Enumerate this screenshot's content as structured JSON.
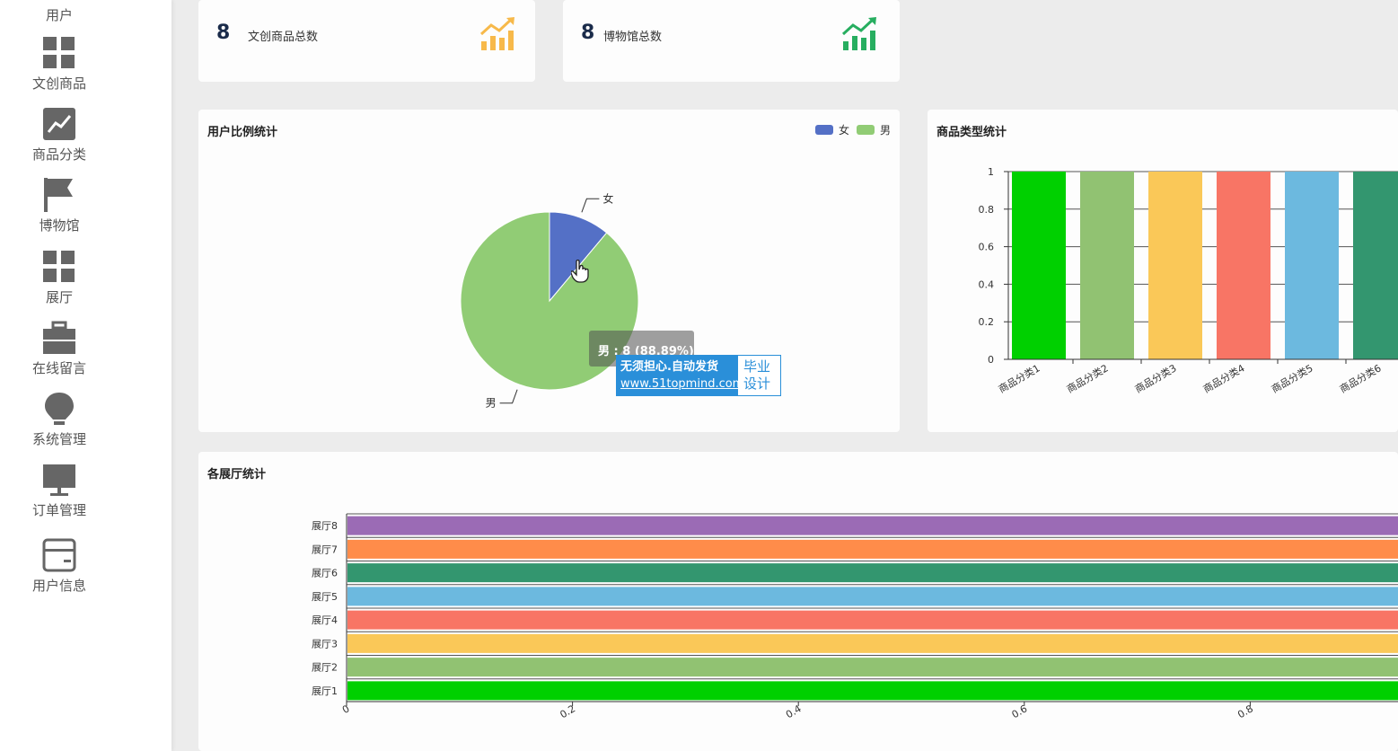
{
  "sidebar": {
    "items": [
      {
        "label": "用户",
        "icon": "user-icon"
      },
      {
        "label": "文创商品",
        "icon": "grid-icon"
      },
      {
        "label": "商品分类",
        "icon": "chart-icon"
      },
      {
        "label": "博物馆",
        "icon": "flag-icon"
      },
      {
        "label": "展厅",
        "icon": "grid-icon"
      },
      {
        "label": "在线留言",
        "icon": "briefcase-icon"
      },
      {
        "label": "系统管理",
        "icon": "bulb-icon"
      },
      {
        "label": "订单管理",
        "icon": "monitor-icon"
      },
      {
        "label": "用户信息",
        "icon": "card-icon"
      }
    ]
  },
  "stats": [
    {
      "value": "8",
      "label": "文创商品总数",
      "color": "#f7b94a"
    },
    {
      "value": "8",
      "label": "博物馆总数",
      "color": "#27ae60"
    }
  ],
  "pie": {
    "title": "用户比例统计",
    "legend": [
      {
        "name": "女",
        "color": "#5470c6"
      },
      {
        "name": "男",
        "color": "#91cc75"
      }
    ],
    "tooltip": "男 : 8 (88.89%)"
  },
  "bar": {
    "title": "商品类型统计"
  },
  "hbar": {
    "title": "各展厅统计"
  },
  "watermark": {
    "line1": "无须担心.自动发货",
    "line2": "www.51topmind.com",
    "right1": "毕业",
    "right2": "设计"
  },
  "chart_data": [
    {
      "type": "pie",
      "title": "用户比例统计",
      "categories": [
        "女",
        "男"
      ],
      "values": [
        1,
        8
      ],
      "colors": [
        "#5470c6",
        "#91cc75"
      ],
      "legend": "top-right"
    },
    {
      "type": "bar",
      "title": "商品类型统计",
      "categories": [
        "商品分类1",
        "商品分类2",
        "商品分类3",
        "商品分类4",
        "商品分类5",
        "商品分类6"
      ],
      "values": [
        1,
        1,
        1,
        1,
        1,
        1
      ],
      "colors": [
        "#00d000",
        "#91c272",
        "#fac858",
        "#f87565",
        "#6cb9df",
        "#33966f"
      ],
      "ylim": [
        0,
        1
      ],
      "yticks": [
        "0",
        "0.2",
        "0.4",
        "0.6",
        "0.8",
        "1"
      ],
      "grid": true
    },
    {
      "type": "bar",
      "orientation": "horizontal",
      "title": "各展厅统计",
      "categories": [
        "展厅1",
        "展厅2",
        "展厅3",
        "展厅4",
        "展厅5",
        "展厅6",
        "展厅7",
        "展厅8"
      ],
      "values": [
        1,
        1,
        1,
        1,
        1,
        1,
        1,
        1
      ],
      "colors": [
        "#00d000",
        "#91c272",
        "#fac858",
        "#f87565",
        "#6cb9df",
        "#33966f",
        "#ff8c4a",
        "#9b6bb5"
      ],
      "xlim": [
        0,
        1
      ],
      "xticks": [
        "0",
        "0.2",
        "0.4",
        "0.6",
        "0.8"
      ]
    }
  ]
}
